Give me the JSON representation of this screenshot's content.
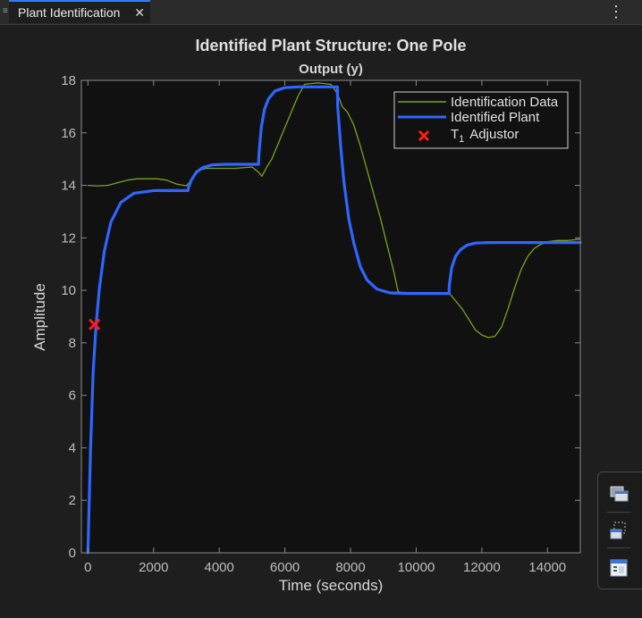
{
  "tab": {
    "label": "Plant Identification",
    "close_glyph": "✕",
    "grip_glyph": "≡",
    "menu_glyph": "⋮"
  },
  "toolbar": {
    "icons": [
      "restore-view-icon",
      "export-icon",
      "property-panel-icon"
    ]
  },
  "colors": {
    "background": "#1e1e1e",
    "plot_background": "#111111",
    "identification_data": "#7fa11e",
    "identified_plant": "#2f66ff",
    "adjustor": "#ff1a1a",
    "text": "#d0d0d0"
  },
  "chart_data": {
    "type": "line",
    "title": "Identified Plant Structure: One Pole",
    "subtitle": "Output (y)",
    "xlabel": "Time (seconds)",
    "ylabel": "Amplitude",
    "xlim": [
      -200,
      15000
    ],
    "ylim": [
      0,
      18
    ],
    "xticks": [
      0,
      2000,
      4000,
      6000,
      8000,
      10000,
      12000,
      14000
    ],
    "yticks": [
      0,
      2,
      4,
      6,
      8,
      10,
      12,
      14,
      16,
      18
    ],
    "grid": false,
    "legend_placement": "top-right",
    "legend": [
      {
        "label": "Identification Data",
        "marker": "line"
      },
      {
        "label": "Identified Plant",
        "marker": "line"
      },
      {
        "label": "T",
        "subscript": "1",
        "suffix": "Adjustor",
        "marker": "x"
      }
    ],
    "series": [
      {
        "name": "Identification Data",
        "x": [
          0,
          300,
          600,
          900,
          1200,
          1500,
          1800,
          2100,
          2400,
          2700,
          3000,
          3150,
          3300,
          3600,
          4000,
          4500,
          5000,
          5200,
          5300,
          5450,
          5600,
          5800,
          6000,
          6200,
          6400,
          6600,
          7000,
          7400,
          7600,
          7750,
          7900,
          8100,
          8300,
          8500,
          8700,
          8900,
          9100,
          9300,
          9450,
          9700,
          10000,
          10400,
          10800,
          11000,
          11200,
          11400,
          11600,
          11800,
          12000,
          12200,
          12400,
          12600,
          12800,
          13000,
          13200,
          13400,
          13600,
          13800,
          14000,
          14300,
          14600,
          15000
        ],
        "y": [
          14.0,
          13.98,
          14.0,
          14.1,
          14.2,
          14.25,
          14.25,
          14.25,
          14.2,
          14.05,
          13.98,
          14.2,
          14.55,
          14.65,
          14.65,
          14.65,
          14.7,
          14.5,
          14.35,
          14.7,
          15.0,
          15.6,
          16.2,
          16.8,
          17.4,
          17.85,
          17.9,
          17.85,
          17.5,
          17.0,
          16.8,
          16.3,
          15.5,
          14.6,
          13.7,
          12.8,
          11.8,
          10.8,
          9.95,
          9.88,
          9.88,
          9.88,
          9.88,
          9.9,
          9.6,
          9.3,
          8.9,
          8.5,
          8.3,
          8.2,
          8.25,
          8.6,
          9.3,
          10.1,
          10.8,
          11.3,
          11.6,
          11.75,
          11.85,
          11.9,
          11.9,
          11.95
        ]
      },
      {
        "name": "Identified Plant",
        "x": [
          0,
          80,
          160,
          250,
          350,
          500,
          700,
          1000,
          1400,
          2000,
          3050,
          3060,
          3150,
          3300,
          3500,
          3800,
          4200,
          5200,
          5210,
          5280,
          5380,
          5500,
          5700,
          6000,
          6400,
          7600,
          7610,
          7700,
          7800,
          7950,
          8100,
          8300,
          8500,
          8800,
          9200,
          9800,
          11000,
          11010,
          11080,
          11200,
          11350,
          11550,
          11800,
          12200,
          13000,
          15000
        ],
        "y": [
          0,
          4.0,
          6.9,
          8.7,
          10.1,
          11.5,
          12.6,
          13.35,
          13.7,
          13.8,
          13.8,
          13.9,
          14.2,
          14.5,
          14.68,
          14.78,
          14.8,
          14.8,
          15.2,
          16.2,
          16.9,
          17.3,
          17.6,
          17.72,
          17.75,
          17.75,
          17.0,
          15.5,
          14.1,
          12.7,
          11.8,
          10.9,
          10.4,
          10.05,
          9.9,
          9.88,
          9.88,
          10.2,
          10.85,
          11.3,
          11.55,
          11.72,
          11.8,
          11.82,
          11.82,
          11.82
        ]
      }
    ],
    "marker": {
      "name": "T1 Adjustor",
      "x": 200,
      "y": 8.7
    }
  }
}
